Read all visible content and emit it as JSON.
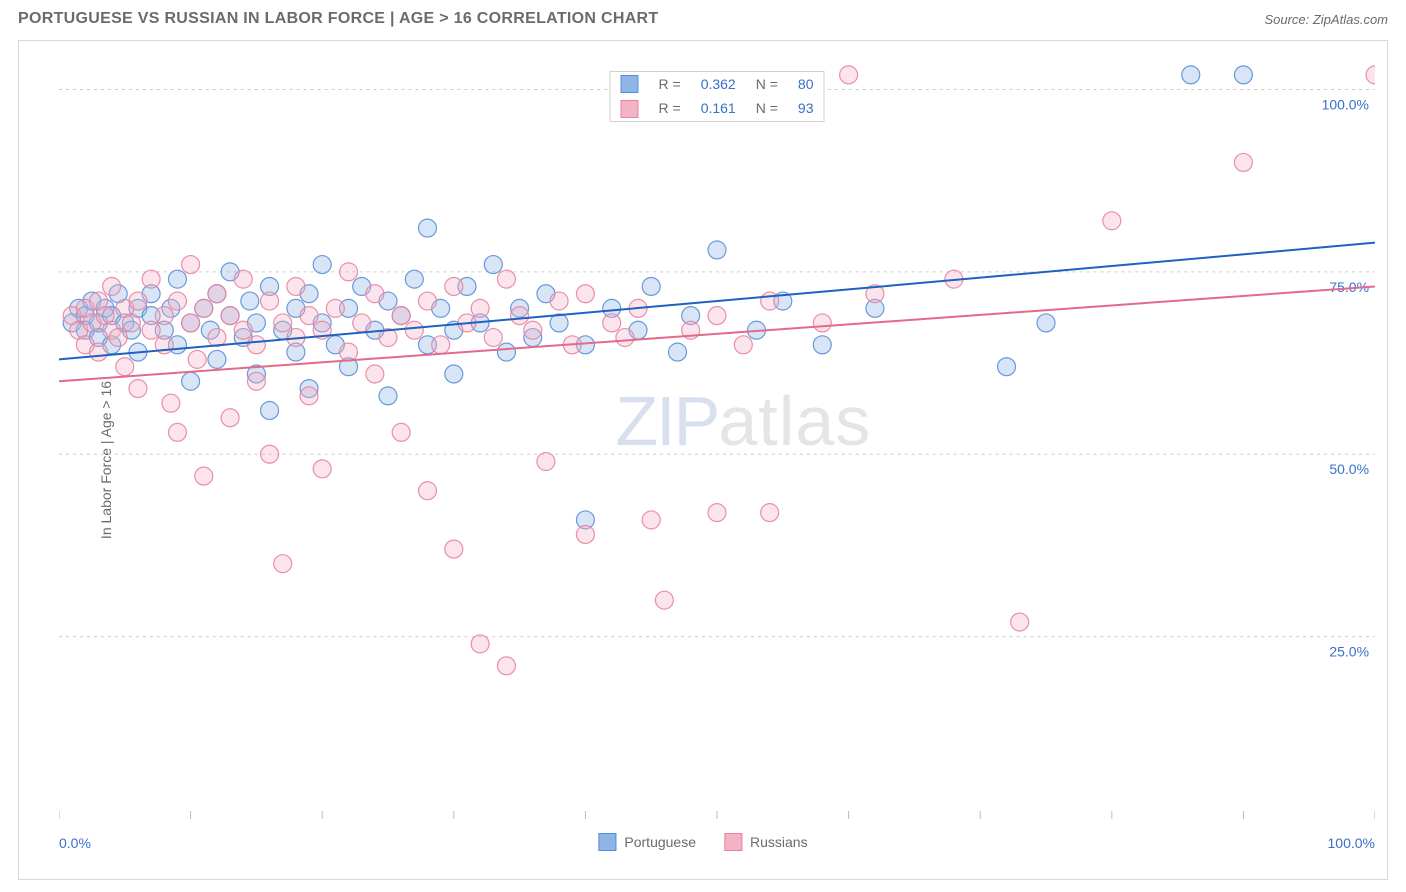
{
  "header": {
    "title": "PORTUGUESE VS RUSSIAN IN LABOR FORCE | AGE > 16 CORRELATION CHART",
    "source": "Source: ZipAtlas.com"
  },
  "watermark": {
    "part1": "ZIP",
    "part2": "atlas"
  },
  "chart": {
    "type": "scatter",
    "y_axis_label": "In Labor Force | Age > 16",
    "xlim": [
      0,
      100
    ],
    "ylim": [
      0,
      105
    ],
    "x_ticks": [
      0,
      10,
      20,
      30,
      40,
      50,
      60,
      70,
      80,
      90,
      100
    ],
    "y_grid": [
      25,
      50,
      75,
      100
    ],
    "y_tick_labels": [
      "25.0%",
      "50.0%",
      "75.0%",
      "100.0%"
    ],
    "x_min_label": "0.0%",
    "x_max_label": "100.0%",
    "background_color": "#ffffff",
    "grid_color": "#cccccc",
    "marker_radius": 9,
    "marker_fill_opacity": 0.35,
    "marker_stroke_opacity": 0.9,
    "line_width": 2,
    "series": [
      {
        "name": "Portuguese",
        "color_fill": "#8fb4e8",
        "color_stroke": "#5a8fd6",
        "line_color": "#1e62c0",
        "R": "0.362",
        "N": "80",
        "trend": {
          "x1": 0,
          "y1": 63,
          "x2": 100,
          "y2": 79
        },
        "points": [
          [
            1,
            68
          ],
          [
            1.5,
            70
          ],
          [
            2,
            69
          ],
          [
            2,
            67
          ],
          [
            2.5,
            71
          ],
          [
            3,
            68
          ],
          [
            3,
            66
          ],
          [
            3.5,
            70
          ],
          [
            4,
            69
          ],
          [
            4,
            65
          ],
          [
            4.5,
            72
          ],
          [
            5,
            68
          ],
          [
            5.5,
            67
          ],
          [
            6,
            70
          ],
          [
            6,
            64
          ],
          [
            7,
            69
          ],
          [
            7,
            72
          ],
          [
            8,
            67
          ],
          [
            8.5,
            70
          ],
          [
            9,
            65
          ],
          [
            9,
            74
          ],
          [
            10,
            68
          ],
          [
            10,
            60
          ],
          [
            11,
            70
          ],
          [
            11.5,
            67
          ],
          [
            12,
            72
          ],
          [
            12,
            63
          ],
          [
            13,
            69
          ],
          [
            13,
            75
          ],
          [
            14,
            66
          ],
          [
            14.5,
            71
          ],
          [
            15,
            68
          ],
          [
            15,
            61
          ],
          [
            16,
            73
          ],
          [
            16,
            56
          ],
          [
            17,
            67
          ],
          [
            18,
            70
          ],
          [
            18,
            64
          ],
          [
            19,
            72
          ],
          [
            19,
            59
          ],
          [
            20,
            68
          ],
          [
            20,
            76
          ],
          [
            21,
            65
          ],
          [
            22,
            70
          ],
          [
            22,
            62
          ],
          [
            23,
            73
          ],
          [
            24,
            67
          ],
          [
            25,
            71
          ],
          [
            25,
            58
          ],
          [
            26,
            69
          ],
          [
            27,
            74
          ],
          [
            28,
            65
          ],
          [
            28,
            81
          ],
          [
            29,
            70
          ],
          [
            30,
            67
          ],
          [
            30,
            61
          ],
          [
            31,
            73
          ],
          [
            32,
            68
          ],
          [
            33,
            76
          ],
          [
            34,
            64
          ],
          [
            35,
            70
          ],
          [
            36,
            66
          ],
          [
            37,
            72
          ],
          [
            38,
            68
          ],
          [
            40,
            65
          ],
          [
            40,
            41
          ],
          [
            42,
            70
          ],
          [
            44,
            67
          ],
          [
            45,
            73
          ],
          [
            47,
            64
          ],
          [
            48,
            69
          ],
          [
            50,
            78
          ],
          [
            53,
            67
          ],
          [
            55,
            71
          ],
          [
            58,
            65
          ],
          [
            62,
            70
          ],
          [
            72,
            62
          ],
          [
            75,
            68
          ],
          [
            86,
            102
          ],
          [
            90,
            102
          ]
        ]
      },
      {
        "name": "Russians",
        "color_fill": "#f4b3c5",
        "color_stroke": "#e7849f",
        "line_color": "#e36a8a",
        "R": "0.161",
        "N": "93",
        "trend": {
          "x1": 0,
          "y1": 60,
          "x2": 100,
          "y2": 73
        },
        "points": [
          [
            1,
            69
          ],
          [
            1.5,
            67
          ],
          [
            2,
            70
          ],
          [
            2,
            65
          ],
          [
            2.5,
            68
          ],
          [
            3,
            71
          ],
          [
            3,
            64
          ],
          [
            3.5,
            69
          ],
          [
            4,
            67
          ],
          [
            4,
            73
          ],
          [
            4.5,
            66
          ],
          [
            5,
            70
          ],
          [
            5,
            62
          ],
          [
            5.5,
            68
          ],
          [
            6,
            71
          ],
          [
            6,
            59
          ],
          [
            7,
            67
          ],
          [
            7,
            74
          ],
          [
            8,
            65
          ],
          [
            8,
            69
          ],
          [
            8.5,
            57
          ],
          [
            9,
            71
          ],
          [
            9,
            53
          ],
          [
            10,
            68
          ],
          [
            10,
            76
          ],
          [
            10.5,
            63
          ],
          [
            11,
            70
          ],
          [
            11,
            47
          ],
          [
            12,
            66
          ],
          [
            12,
            72
          ],
          [
            13,
            69
          ],
          [
            13,
            55
          ],
          [
            14,
            67
          ],
          [
            14,
            74
          ],
          [
            15,
            65
          ],
          [
            15,
            60
          ],
          [
            16,
            71
          ],
          [
            16,
            50
          ],
          [
            17,
            68
          ],
          [
            17,
            35
          ],
          [
            18,
            66
          ],
          [
            18,
            73
          ],
          [
            19,
            69
          ],
          [
            19,
            58
          ],
          [
            20,
            67
          ],
          [
            20,
            48
          ],
          [
            21,
            70
          ],
          [
            22,
            64
          ],
          [
            22,
            75
          ],
          [
            23,
            68
          ],
          [
            24,
            61
          ],
          [
            24,
            72
          ],
          [
            25,
            66
          ],
          [
            26,
            69
          ],
          [
            26,
            53
          ],
          [
            27,
            67
          ],
          [
            28,
            71
          ],
          [
            28,
            45
          ],
          [
            29,
            65
          ],
          [
            30,
            73
          ],
          [
            30,
            37
          ],
          [
            31,
            68
          ],
          [
            32,
            70
          ],
          [
            32,
            24
          ],
          [
            33,
            66
          ],
          [
            34,
            74
          ],
          [
            34,
            21
          ],
          [
            35,
            69
          ],
          [
            36,
            67
          ],
          [
            37,
            49
          ],
          [
            38,
            71
          ],
          [
            39,
            65
          ],
          [
            40,
            72
          ],
          [
            40,
            39
          ],
          [
            42,
            68
          ],
          [
            43,
            66
          ],
          [
            44,
            70
          ],
          [
            45,
            41
          ],
          [
            46,
            30
          ],
          [
            48,
            67
          ],
          [
            50,
            69
          ],
          [
            50,
            42
          ],
          [
            52,
            65
          ],
          [
            54,
            71
          ],
          [
            54,
            42
          ],
          [
            58,
            68
          ],
          [
            60,
            102
          ],
          [
            62,
            72
          ],
          [
            68,
            74
          ],
          [
            73,
            27
          ],
          [
            80,
            82
          ],
          [
            90,
            90
          ],
          [
            100,
            102
          ]
        ]
      }
    ],
    "legend_top": {
      "R_label": "R =",
      "N_label": "N ="
    },
    "legend_bottom_labels": [
      "Portuguese",
      "Russians"
    ]
  }
}
